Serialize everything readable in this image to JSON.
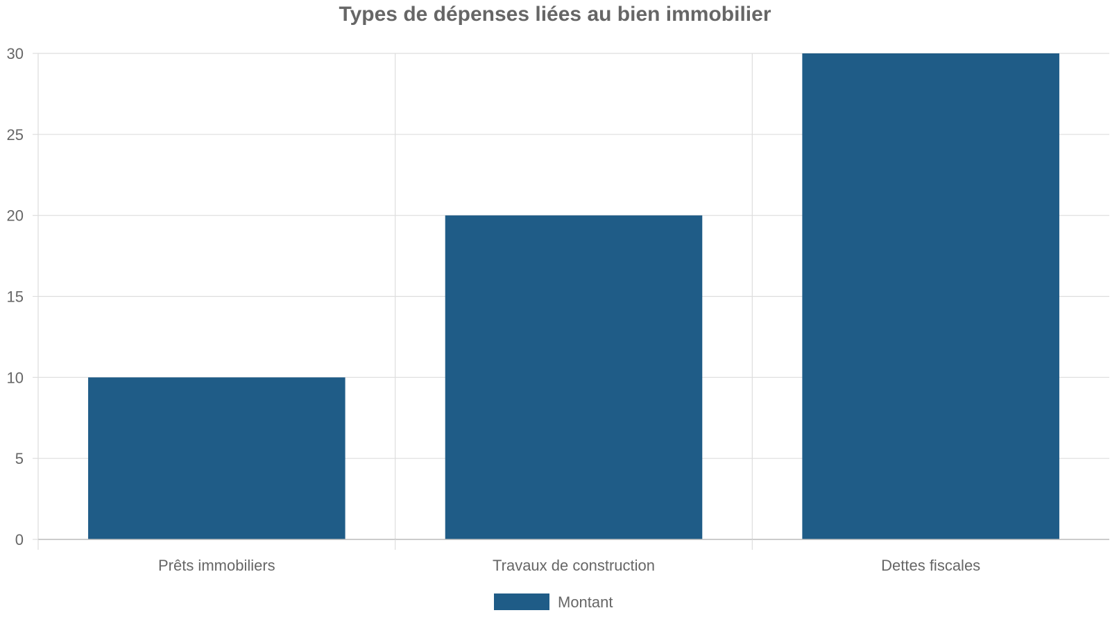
{
  "chart_data": {
    "type": "bar",
    "title": "Types de dépenses liées au bien immobilier",
    "categories": [
      "Prêts immobiliers",
      "Travaux de construction",
      "Dettes fiscales"
    ],
    "series": [
      {
        "name": "Montant",
        "values": [
          10,
          20,
          30
        ]
      }
    ],
    "xlabel": "",
    "ylabel": "",
    "ylim": [
      0,
      30
    ],
    "yticks": [
      0,
      5,
      10,
      15,
      20,
      25,
      30
    ],
    "grid": true,
    "legend": "bottom-center",
    "colors": {
      "bar": "#1f5c87",
      "grid": "#dddddd",
      "axis": "#bbbbbb",
      "text": "#666666"
    }
  }
}
